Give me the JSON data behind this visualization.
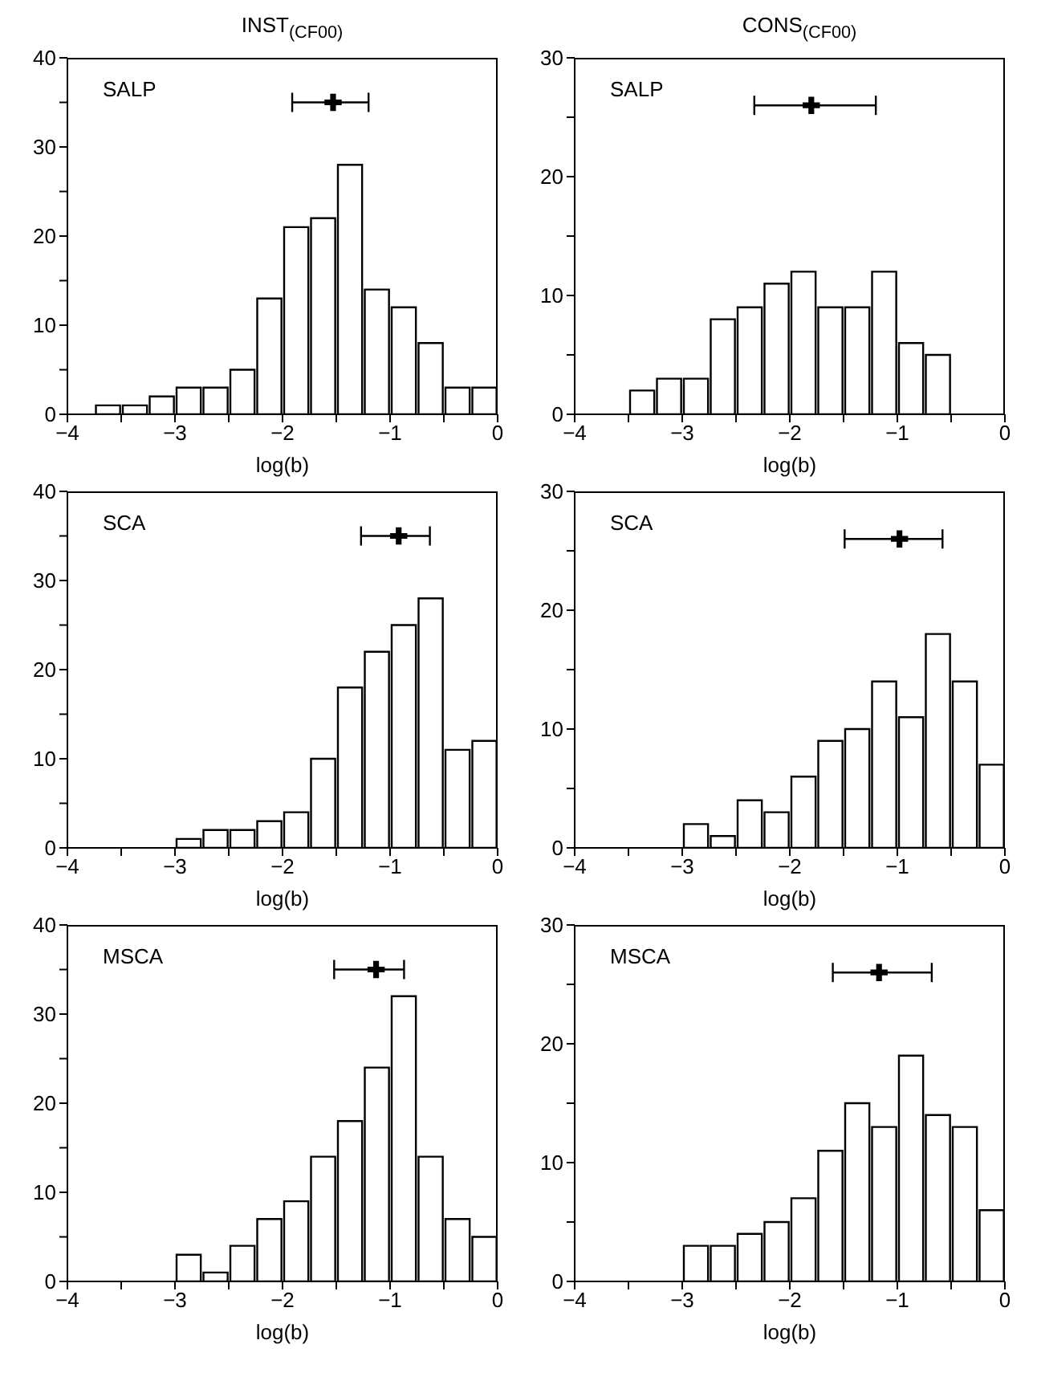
{
  "chart_data": [
    {
      "type": "histogram",
      "title": "INST$_{(CF00)}$",
      "xlabel": "log(b)",
      "annotations": [
        "SALP"
      ],
      "bins": [
        -4,
        -3.75,
        -3.5,
        -3.25,
        -3,
        -2.75,
        -2.5,
        -2.25,
        -2,
        -1.75,
        -1.5,
        -1.25,
        -1,
        -0.75,
        -0.5,
        -0.25,
        0
      ],
      "xlim": [
        -4,
        0
      ],
      "xticks": [
        -4,
        {
          "value": -3.5,
          "label": null
        },
        -3,
        {
          "value": -2.5,
          "label": null
        },
        -2,
        {
          "value": -1.5,
          "label": null
        },
        -1,
        {
          "value": -0.5,
          "label": null
        },
        0
      ],
      "ylim": [
        0,
        40
      ],
      "yticks": [
        0,
        {
          "value": 5,
          "label": null
        },
        10,
        {
          "value": 15,
          "label": null
        },
        20,
        {
          "value": 25,
          "label": null
        },
        30,
        {
          "value": 35,
          "label": null
        },
        40
      ],
      "series": [
        {
          "type": "histogram",
          "color": "#ffffff",
          "values": [
            0,
            1,
            1,
            2,
            3,
            3,
            5,
            13,
            21,
            22,
            28,
            14,
            12,
            8,
            3,
            3
          ]
        },
        {
          "type": "scatter",
          "color": "#000000",
          "marker": "cross",
          "x": [
            -1.53
          ],
          "values": [
            35
          ],
          "xerrors": [
            [
              -1.91,
              -1.2
            ]
          ]
        }
      ]
    },
    {
      "type": "histogram",
      "title": "CONS$_{(CF00)}$",
      "xlabel": "log(b)",
      "annotations": [
        "SALP"
      ],
      "bins": [
        -4,
        -3.75,
        -3.5,
        -3.25,
        -3,
        -2.75,
        -2.5,
        -2.25,
        -2,
        -1.75,
        -1.5,
        -1.25,
        -1,
        -0.75,
        -0.5,
        -0.25,
        0
      ],
      "xlim": [
        -4,
        0
      ],
      "xticks": [
        -4,
        {
          "value": -3.5,
          "label": null
        },
        -3,
        {
          "value": -2.5,
          "label": null
        },
        -2,
        {
          "value": -1.5,
          "label": null
        },
        -1,
        {
          "value": -0.5,
          "label": null
        },
        0
      ],
      "ylim": [
        0,
        30
      ],
      "yticks": [
        0,
        {
          "value": 5,
          "label": null
        },
        10,
        {
          "value": 15,
          "label": null
        },
        20,
        {
          "value": 25,
          "label": null
        },
        30
      ],
      "series": [
        {
          "type": "histogram",
          "color": "#ffffff",
          "values": [
            0,
            0,
            2,
            3,
            3,
            8,
            9,
            11,
            12,
            9,
            9,
            12,
            6,
            5,
            0,
            0
          ]
        },
        {
          "type": "scatter",
          "color": "#000000",
          "marker": "cross",
          "x": [
            -1.8
          ],
          "values": [
            26
          ],
          "xerrors": [
            [
              -2.33,
              -1.2
            ]
          ]
        }
      ]
    },
    {
      "type": "histogram",
      "xlabel": "log(b)",
      "annotations": [
        "SCA"
      ],
      "bins": [
        -4,
        -3.75,
        -3.5,
        -3.25,
        -3,
        -2.75,
        -2.5,
        -2.25,
        -2,
        -1.75,
        -1.5,
        -1.25,
        -1,
        -0.75,
        -0.5,
        -0.25,
        0
      ],
      "xlim": [
        -4,
        0
      ],
      "xticks": [
        -4,
        {
          "value": -3.5,
          "label": null
        },
        -3,
        {
          "value": -2.5,
          "label": null
        },
        -2,
        {
          "value": -1.5,
          "label": null
        },
        -1,
        {
          "value": -0.5,
          "label": null
        },
        0
      ],
      "ylim": [
        0,
        40
      ],
      "yticks": [
        0,
        {
          "value": 5,
          "label": null
        },
        10,
        {
          "value": 15,
          "label": null
        },
        20,
        {
          "value": 25,
          "label": null
        },
        30,
        {
          "value": 35,
          "label": null
        },
        40
      ],
      "series": [
        {
          "type": "histogram",
          "color": "#ffffff",
          "values": [
            0,
            0,
            0,
            0,
            1,
            2,
            2,
            3,
            4,
            10,
            18,
            22,
            25,
            28,
            11,
            12
          ]
        },
        {
          "type": "scatter",
          "color": "#000000",
          "marker": "cross",
          "x": [
            -0.92
          ],
          "values": [
            35
          ],
          "xerrors": [
            [
              -1.27,
              -0.63
            ]
          ]
        }
      ]
    },
    {
      "type": "histogram",
      "xlabel": "log(b)",
      "annotations": [
        "SCA"
      ],
      "bins": [
        -4,
        -3.75,
        -3.5,
        -3.25,
        -3,
        -2.75,
        -2.5,
        -2.25,
        -2,
        -1.75,
        -1.5,
        -1.25,
        -1,
        -0.75,
        -0.5,
        -0.25,
        0
      ],
      "xlim": [
        -4,
        0
      ],
      "xticks": [
        -4,
        {
          "value": -3.5,
          "label": null
        },
        -3,
        {
          "value": -2.5,
          "label": null
        },
        -2,
        {
          "value": -1.5,
          "label": null
        },
        -1,
        {
          "value": -0.5,
          "label": null
        },
        0
      ],
      "ylim": [
        0,
        30
      ],
      "yticks": [
        0,
        {
          "value": 5,
          "label": null
        },
        10,
        {
          "value": 15,
          "label": null
        },
        20,
        {
          "value": 25,
          "label": null
        },
        30
      ],
      "series": [
        {
          "type": "histogram",
          "color": "#ffffff",
          "values": [
            0,
            0,
            0,
            0,
            2,
            1,
            4,
            3,
            6,
            9,
            10,
            14,
            11,
            18,
            14,
            7
          ]
        },
        {
          "type": "scatter",
          "color": "#000000",
          "marker": "cross",
          "x": [
            -0.98
          ],
          "values": [
            26
          ],
          "xerrors": [
            [
              -1.49,
              -0.58
            ]
          ]
        }
      ]
    },
    {
      "type": "histogram",
      "xlabel": "log(b)",
      "annotations": [
        "MSCA"
      ],
      "bins": [
        -4,
        -3.75,
        -3.5,
        -3.25,
        -3,
        -2.75,
        -2.5,
        -2.25,
        -2,
        -1.75,
        -1.5,
        -1.25,
        -1,
        -0.75,
        -0.5,
        -0.25,
        0
      ],
      "xlim": [
        -4,
        0
      ],
      "xticks": [
        -4,
        {
          "value": -3.5,
          "label": null
        },
        -3,
        {
          "value": -2.5,
          "label": null
        },
        -2,
        {
          "value": -1.5,
          "label": null
        },
        -1,
        {
          "value": -0.5,
          "label": null
        },
        0
      ],
      "ylim": [
        0,
        40
      ],
      "yticks": [
        0,
        {
          "value": 5,
          "label": null
        },
        10,
        {
          "value": 15,
          "label": null
        },
        20,
        {
          "value": 25,
          "label": null
        },
        30,
        {
          "value": 35,
          "label": null
        },
        40
      ],
      "series": [
        {
          "type": "histogram",
          "color": "#ffffff",
          "values": [
            0,
            0,
            0,
            0,
            3,
            1,
            4,
            7,
            9,
            14,
            18,
            24,
            32,
            14,
            7,
            5
          ]
        },
        {
          "type": "scatter",
          "color": "#000000",
          "marker": "cross",
          "x": [
            -1.13
          ],
          "values": [
            35
          ],
          "xerrors": [
            [
              -1.52,
              -0.87
            ]
          ]
        }
      ]
    },
    {
      "type": "histogram",
      "xlabel": "log(b)",
      "annotations": [
        "MSCA"
      ],
      "bins": [
        -4,
        -3.75,
        -3.5,
        -3.25,
        -3,
        -2.75,
        -2.5,
        -2.25,
        -2,
        -1.75,
        -1.5,
        -1.25,
        -1,
        -0.75,
        -0.5,
        -0.25,
        0
      ],
      "xlim": [
        -4,
        0
      ],
      "xticks": [
        -4,
        {
          "value": -3.5,
          "label": null
        },
        -3,
        {
          "value": -2.5,
          "label": null
        },
        -2,
        {
          "value": -1.5,
          "label": null
        },
        -1,
        {
          "value": -0.5,
          "label": null
        },
        0
      ],
      "ylim": [
        0,
        30
      ],
      "yticks": [
        0,
        {
          "value": 5,
          "label": null
        },
        10,
        {
          "value": 15,
          "label": null
        },
        20,
        {
          "value": 25,
          "label": null
        },
        30
      ],
      "series": [
        {
          "type": "histogram",
          "color": "#ffffff",
          "values": [
            0,
            0,
            0,
            0,
            3,
            3,
            4,
            5,
            7,
            11,
            15,
            13,
            19,
            14,
            13,
            6
          ]
        },
        {
          "type": "scatter",
          "color": "#000000",
          "marker": "cross",
          "x": [
            -1.17
          ],
          "values": [
            26
          ],
          "xerrors": [
            [
              -1.6,
              -0.68
            ]
          ]
        }
      ]
    }
  ]
}
